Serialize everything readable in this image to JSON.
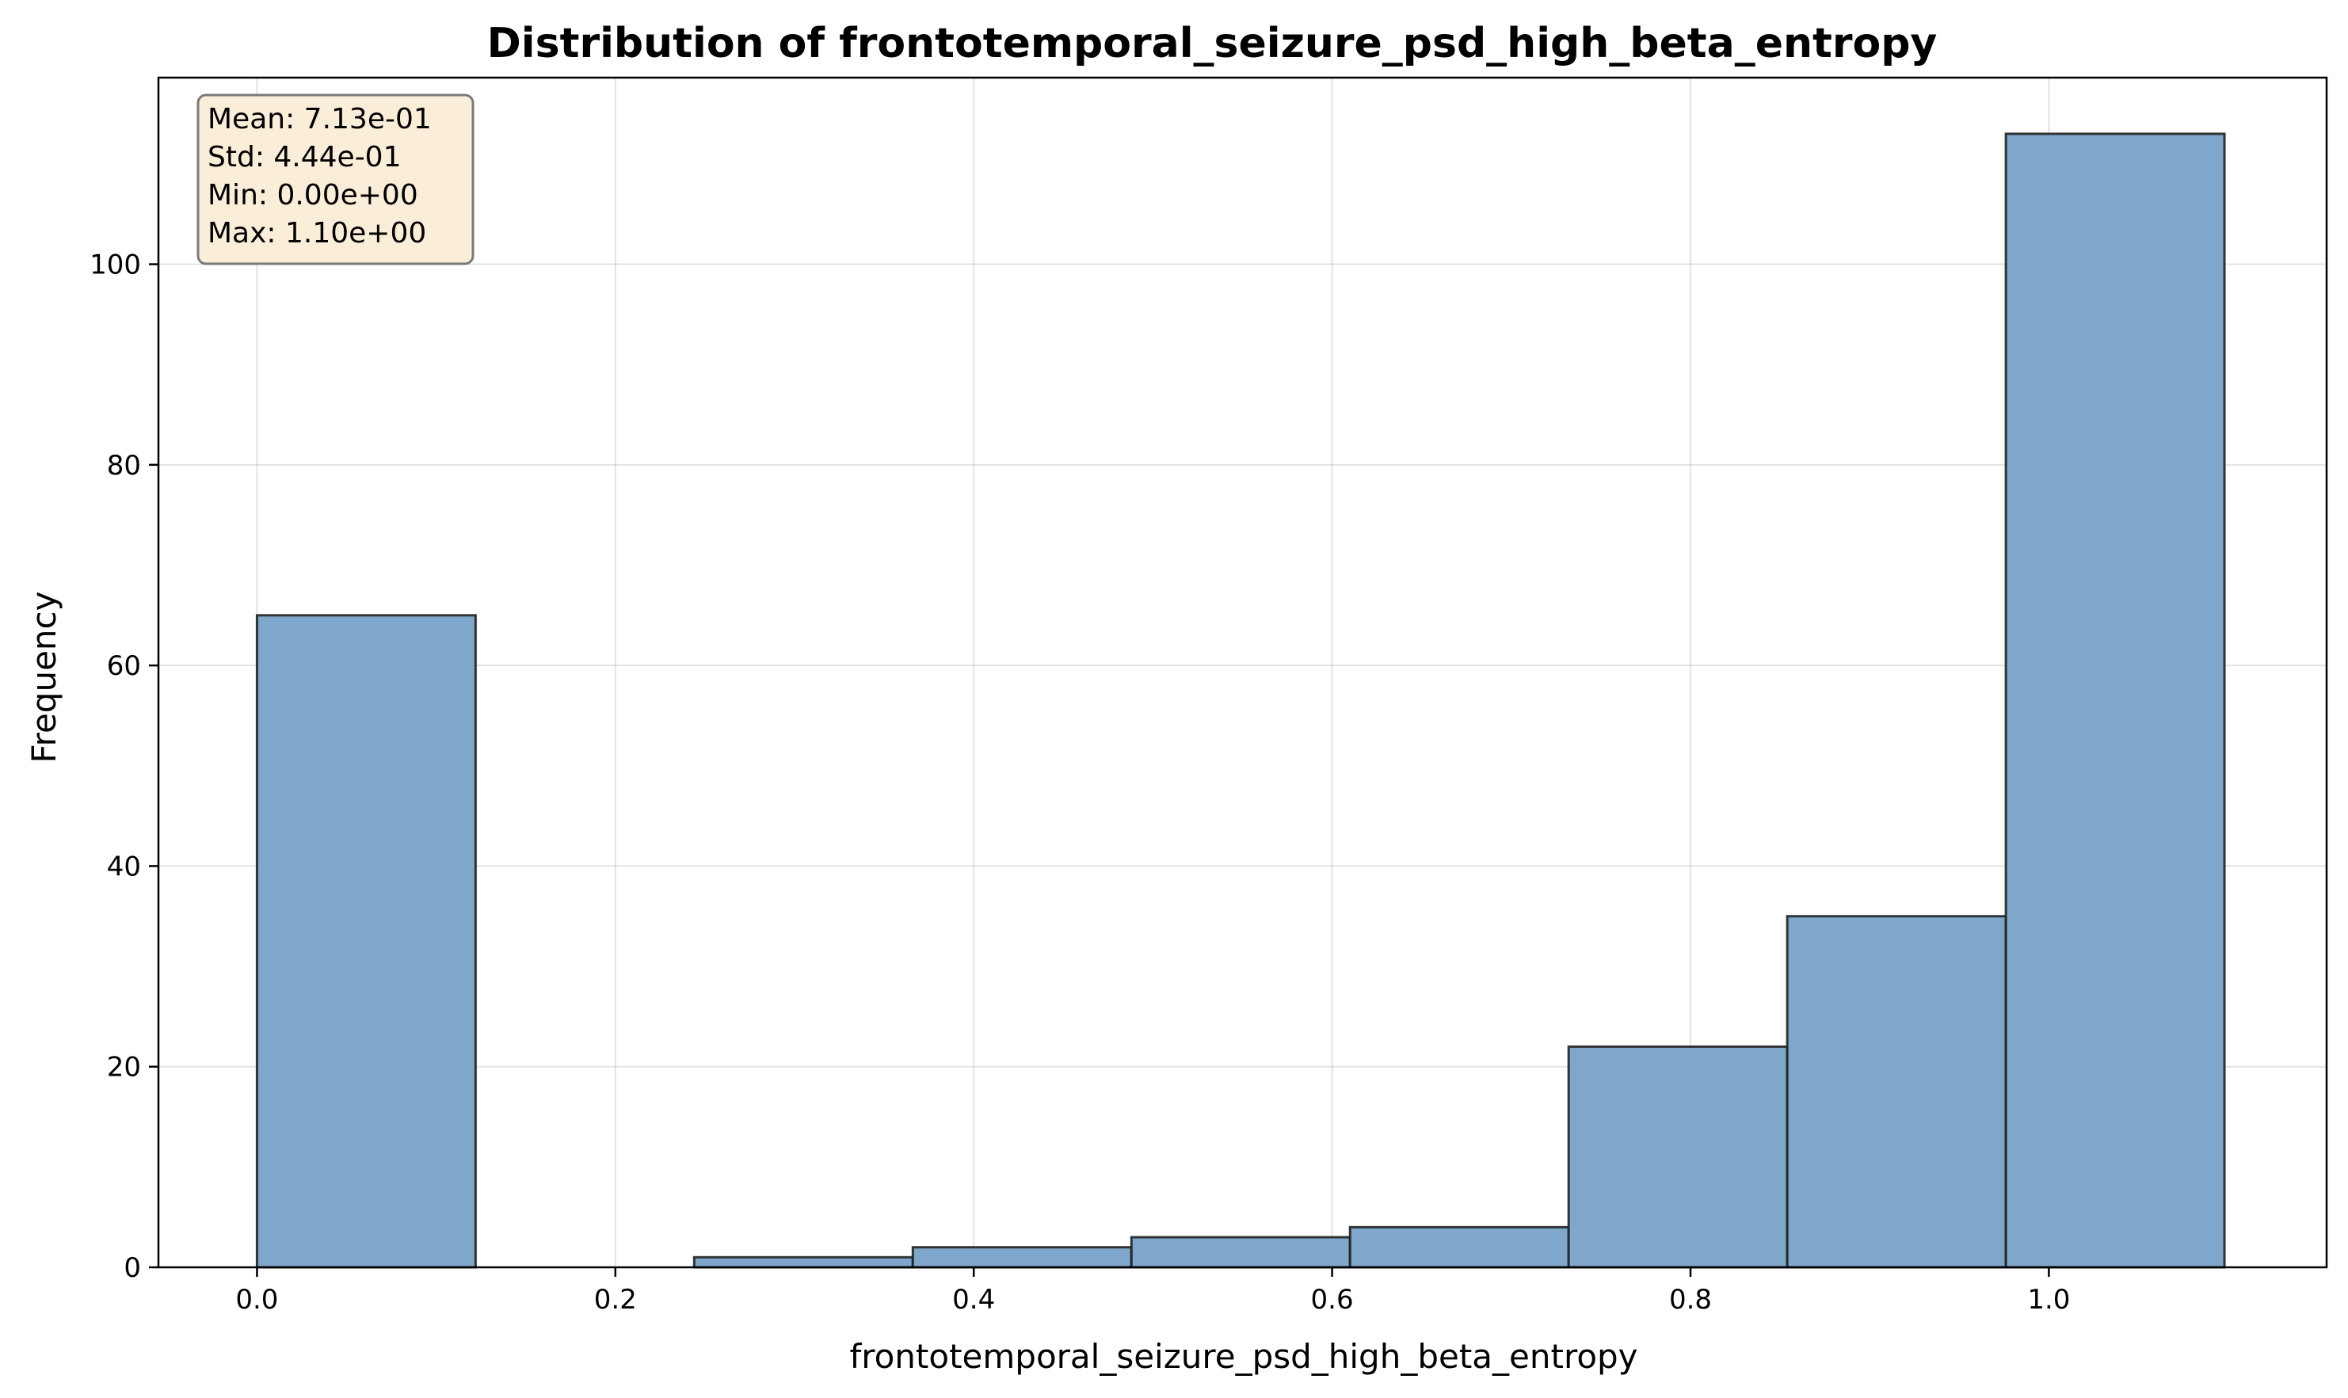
{
  "chart_data": {
    "type": "bar",
    "title": "Distribution of frontotemporal_seizure_psd_high_beta_entropy",
    "xlabel": "frontotemporal_seizure_psd_high_beta_entropy",
    "ylabel": "Frequency",
    "xlim": [
      -0.055,
      1.155
    ],
    "ylim": [
      0,
      118.6
    ],
    "xticks": [
      0.0,
      0.2,
      0.4,
      0.6,
      0.8,
      1.0
    ],
    "xtick_labels": [
      "0.0",
      "0.2",
      "0.4",
      "0.6",
      "0.8",
      "1.0"
    ],
    "yticks": [
      0,
      20,
      40,
      60,
      80,
      100
    ],
    "ytick_labels": [
      "0",
      "20",
      "40",
      "60",
      "80",
      "100"
    ],
    "grid": true,
    "bar_color": "#7ea7cb",
    "edge_color": "#222222",
    "bins": [
      {
        "x0": 0.0,
        "x1": 0.122,
        "count": 65
      },
      {
        "x0": 0.122,
        "x1": 0.244,
        "count": 0
      },
      {
        "x0": 0.244,
        "x1": 0.366,
        "count": 1
      },
      {
        "x0": 0.366,
        "x1": 0.488,
        "count": 2
      },
      {
        "x0": 0.488,
        "x1": 0.61,
        "count": 3
      },
      {
        "x0": 0.61,
        "x1": 0.732,
        "count": 4
      },
      {
        "x0": 0.732,
        "x1": 0.854,
        "count": 22
      },
      {
        "x0": 0.854,
        "x1": 0.976,
        "count": 35
      },
      {
        "x0": 0.976,
        "x1": 1.098,
        "count": 113
      }
    ],
    "stats_box": {
      "lines": [
        "Mean: 7.13e-01",
        "Std: 4.44e-01",
        "Min: 0.00e+00",
        "Max: 1.10e+00"
      ],
      "background": "#fbeed8",
      "border": "#7a7a7a",
      "placement": "top-left"
    }
  }
}
